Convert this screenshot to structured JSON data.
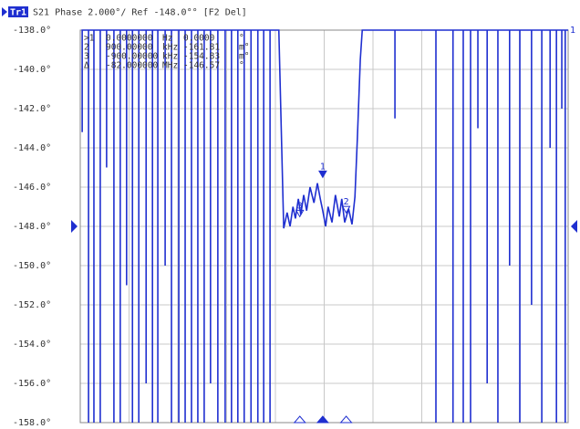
{
  "chart_data": {
    "type": "line",
    "header": {
      "trace": "Tr1",
      "text": "S21 Phase 2.000°/ Ref -148.0°° [F2 Del]"
    },
    "trace_number": "1",
    "xlim": [
      0,
      10
    ],
    "xticks": [
      0,
      1,
      2,
      3,
      4,
      5,
      6,
      7,
      8,
      9,
      10
    ],
    "ylim": [
      -158,
      -138
    ],
    "yticks": [
      {
        "value": -138,
        "label": "-138.0°"
      },
      {
        "value": -140,
        "label": "-140.0°"
      },
      {
        "value": -142,
        "label": "-142.0°"
      },
      {
        "value": -144,
        "label": "-144.0°"
      },
      {
        "value": -146,
        "label": "-146.0°"
      },
      {
        "value": -148,
        "label": "-148.0°"
      },
      {
        "value": -150,
        "label": "-150.0°"
      },
      {
        "value": -152,
        "label": "-152.0°"
      },
      {
        "value": -154,
        "label": "-154.0°"
      },
      {
        "value": -156,
        "label": "-156.0°"
      },
      {
        "value": -158,
        "label": "-158.0°"
      }
    ],
    "grid": true,
    "ref_level": -148,
    "series": [
      {
        "name": "Tr1",
        "color": "#1f2fd0",
        "x": [
          0.04,
          0.04,
          0.04,
          0.17,
          0.17,
          0.17,
          0.28,
          0.28,
          0.28,
          0.41,
          0.41,
          0.41,
          0.54,
          0.54,
          0.54,
          0.69,
          0.69,
          0.69,
          0.82,
          0.82,
          0.82,
          0.95,
          0.95,
          0.95,
          1.07,
          1.07,
          1.07,
          1.2,
          1.2,
          1.2,
          1.35,
          1.35,
          1.35,
          1.48,
          1.48,
          1.48,
          1.59,
          1.59,
          1.59,
          1.74,
          1.74,
          1.74,
          1.87,
          1.87,
          1.87,
          2.02,
          2.02,
          2.02,
          2.15,
          2.15,
          2.15,
          2.28,
          2.28,
          2.28,
          2.41,
          2.41,
          2.41,
          2.54,
          2.54,
          2.54,
          2.67,
          2.67,
          2.67,
          2.82,
          2.82,
          2.82,
          2.97,
          2.97,
          2.97,
          3.1,
          3.1,
          3.1,
          3.23,
          3.23,
          3.23,
          3.36,
          3.36,
          3.36,
          3.5,
          3.5,
          3.5,
          3.64,
          3.64,
          3.64,
          3.76,
          3.76,
          3.76,
          3.89,
          3.89,
          3.89,
          4.07,
          4.17,
          4.24,
          4.3,
          4.36,
          4.41,
          4.47,
          4.52,
          4.58,
          4.64,
          4.71,
          4.79,
          4.86,
          4.92,
          4.97,
          5.03,
          5.08,
          5.16,
          5.23,
          5.31,
          5.36,
          5.42,
          5.5,
          5.57,
          5.63,
          5.68,
          5.74,
          5.78,
          6.45,
          6.45,
          6.45,
          7.29,
          7.29,
          7.29,
          7.64,
          7.64,
          7.64,
          7.85,
          7.85,
          7.85,
          8.0,
          8.0,
          8.0,
          8.15,
          8.15,
          8.15,
          8.34,
          8.34,
          8.34,
          8.56,
          8.56,
          8.56,
          8.8,
          8.8,
          8.8,
          9.01,
          9.01,
          9.01,
          9.25,
          9.25,
          9.25,
          9.46,
          9.46,
          9.46,
          9.63,
          9.63,
          9.63,
          9.76,
          9.76,
          9.76,
          9.87,
          9.87,
          9.87,
          9.94,
          9.94,
          9.94,
          10
        ],
        "values": [
          -138,
          -143.2,
          -138,
          -138,
          -158,
          -138,
          -138,
          -158,
          -138,
          -138,
          -158,
          -138,
          -138,
          -145,
          -138,
          -138,
          -158,
          -138,
          -138,
          -158,
          -138,
          -138,
          -151,
          -138,
          -138,
          -158,
          -138,
          -138,
          -158,
          -138,
          -138,
          -156,
          -138,
          -138,
          -158,
          -138,
          -138,
          -158,
          -138,
          -138,
          -150,
          -138,
          -138,
          -158,
          -138,
          -138,
          -158,
          -138,
          -138,
          -158,
          -138,
          -138,
          -158,
          -138,
          -138,
          -158,
          -138,
          -138,
          -158,
          -138,
          -138,
          -156,
          -138,
          -138,
          -158,
          -138,
          -138,
          -158,
          -138,
          -138,
          -158,
          -138,
          -138,
          -158,
          -138,
          -138,
          -158,
          -138,
          -138,
          -158,
          -138,
          -138,
          -158,
          -138,
          -138,
          -158,
          -138,
          -138,
          -158,
          -138,
          -138,
          -148.1,
          -147.3,
          -148.0,
          -147.0,
          -147.6,
          -146.6,
          -147.4,
          -146.4,
          -147.2,
          -146.0,
          -146.8,
          -145.8,
          -146.6,
          -147.2,
          -148.0,
          -147.0,
          -147.8,
          -146.4,
          -147.5,
          -146.6,
          -147.8,
          -147.1,
          -147.9,
          -146.5,
          -143.5,
          -139.5,
          -138,
          -138,
          -142.5,
          -138,
          -138,
          -158,
          -138,
          -138,
          -158,
          -138,
          -138,
          -158,
          -138,
          -138,
          -158,
          -138,
          -138,
          -143,
          -138,
          -138,
          -156,
          -138,
          -138,
          -158,
          -138,
          -138,
          -150,
          -138,
          -138,
          -158,
          -138,
          -138,
          -152,
          -138,
          -138,
          -158,
          -138,
          -138,
          -144,
          -138,
          -138,
          -158,
          -138,
          -138,
          -142,
          -138,
          -138,
          -158,
          -138,
          -138
        ]
      }
    ],
    "markers": [
      {
        "label": "1",
        "x": 4.97,
        "value": -145.6,
        "active": true
      },
      {
        "label": "2",
        "x": 5.45,
        "value": -147.4,
        "active": false
      },
      {
        "label": "3",
        "x": 4.5,
        "value": -147.6,
        "active": false
      }
    ],
    "marker_table": [
      [
        ">1",
        "0.0000000",
        "Hz",
        "0.0000",
        "°"
      ],
      [
        "2",
        "900.00000",
        "kHz",
        "-161.81",
        "m°"
      ],
      [
        "3",
        "-900.00000",
        "kHz",
        "-154.83",
        "m°"
      ],
      [
        "Δ",
        "-82.000000",
        "MHz",
        "-146.57",
        "°"
      ]
    ]
  }
}
